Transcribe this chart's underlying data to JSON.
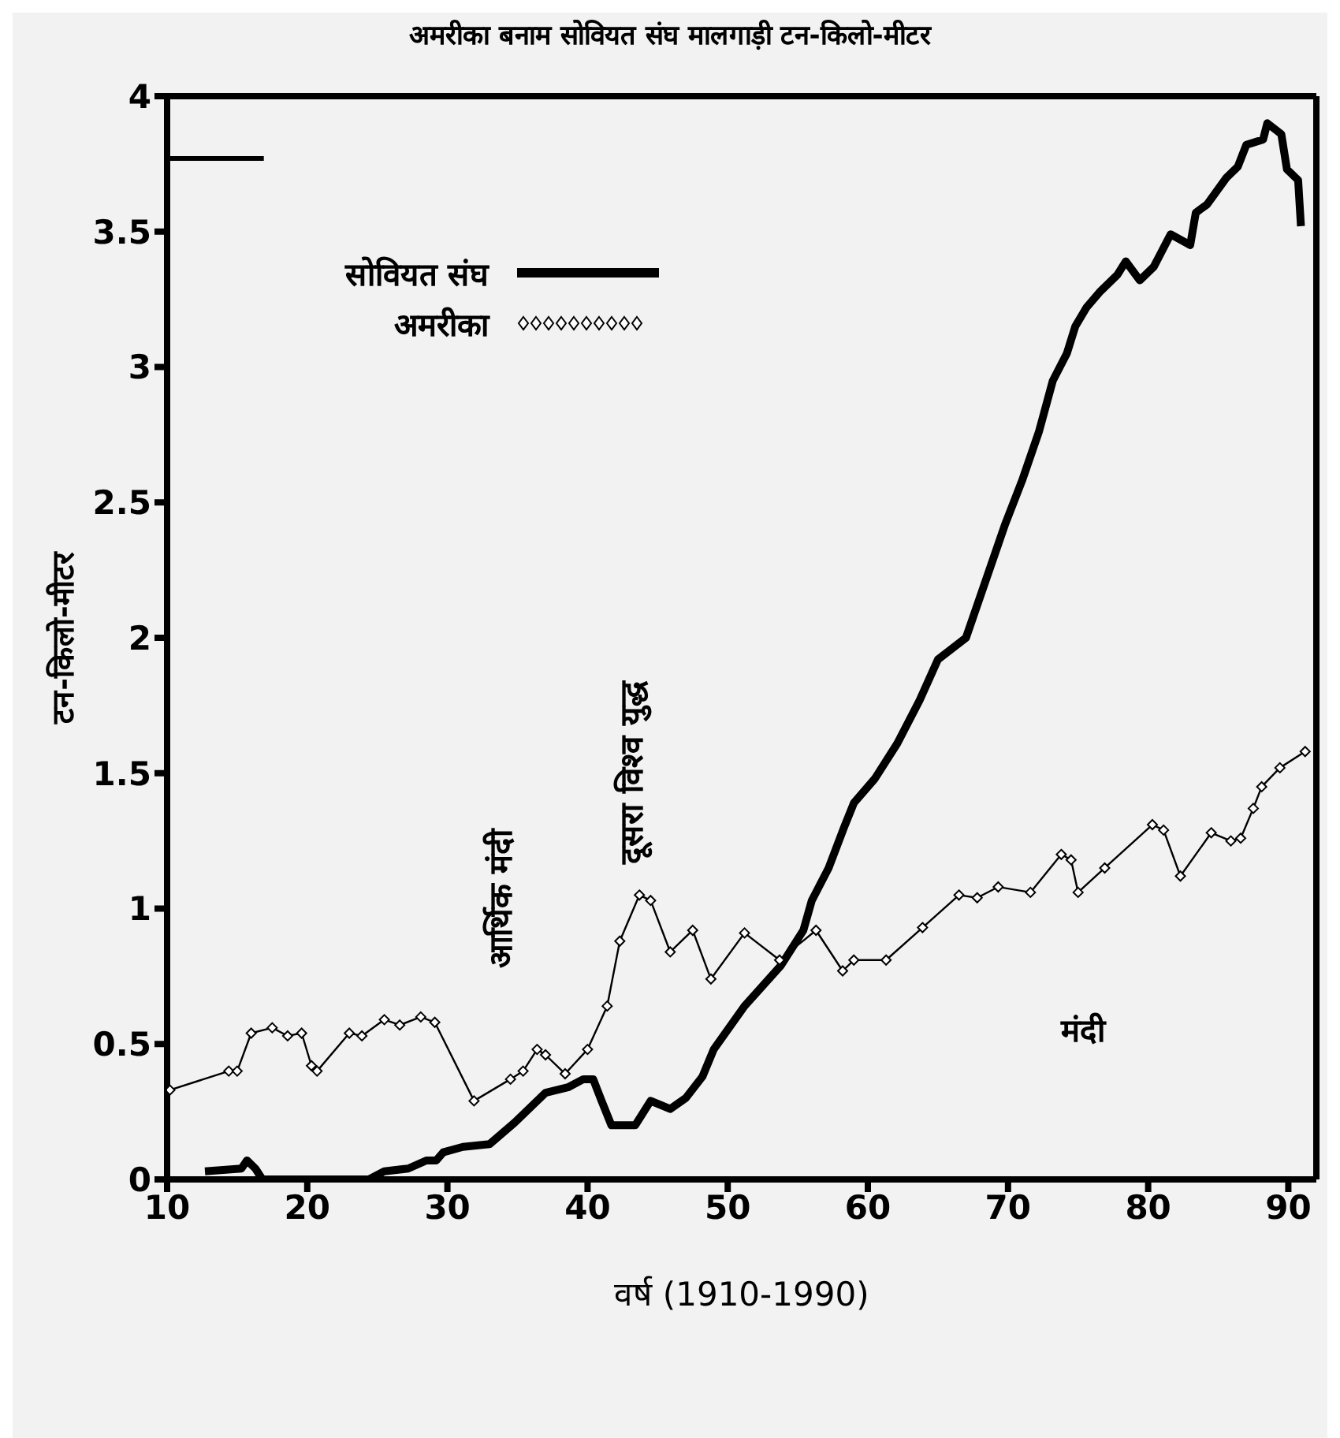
{
  "chart_data": {
    "type": "line",
    "title": "अमरीका बनाम सोवियत संघ मालगाड़ी टन-किलो-मीटर",
    "xlabel": "वर्ष (1910-1990)",
    "ylabel": "टन-किलो-मीटर",
    "xlim": [
      10,
      92
    ],
    "xticks": [
      10,
      20,
      30,
      40,
      50,
      60,
      70,
      80,
      90
    ],
    "ylim": [
      0,
      4
    ],
    "yticks": [
      0,
      0.5,
      1,
      1.5,
      2,
      2.5,
      3,
      3.5,
      4
    ],
    "legend": "top left",
    "series": [
      {
        "name": "सोवियत संघ",
        "color": "#000000",
        "marker": "none",
        "x": [
          12.7,
          15.3,
          15.7,
          16.3,
          16.8,
          24.4,
          25.5,
          27.2,
          28.5,
          29.2,
          29.7,
          31.1,
          33,
          34.8,
          37,
          38.6,
          39.7,
          40.4,
          41,
          41.7,
          43.4,
          44.5,
          45.9,
          47,
          48.2,
          49,
          51.2,
          53.8,
          55.4,
          56,
          57.2,
          58.3,
          59,
          60.5,
          62.1,
          63.7,
          65,
          67,
          68.2,
          69.8,
          71,
          72.2,
          73.2,
          74.2,
          74.8,
          75.6,
          76.6,
          77.8,
          78.4,
          79.4,
          80.4,
          81.6,
          83,
          83.4,
          84.2,
          85.6,
          86.4,
          87,
          88.2,
          88.5,
          89.5,
          89.9,
          90.7,
          90.9
        ],
        "values": [
          0.03,
          0.04,
          0.07,
          0.04,
          0,
          0,
          0.03,
          0.04,
          0.07,
          0.07,
          0.1,
          0.12,
          0.13,
          0.21,
          0.32,
          0.34,
          0.37,
          0.37,
          0.29,
          0.2,
          0.2,
          0.29,
          0.26,
          0.3,
          0.38,
          0.48,
          0.64,
          0.79,
          0.92,
          1.03,
          1.15,
          1.3,
          1.39,
          1.48,
          1.61,
          1.77,
          1.92,
          2.0,
          2.18,
          2.42,
          2.58,
          2.76,
          2.95,
          3.05,
          3.15,
          3.22,
          3.28,
          3.34,
          3.39,
          3.32,
          3.37,
          3.49,
          3.45,
          3.57,
          3.6,
          3.7,
          3.74,
          3.82,
          3.84,
          3.9,
          3.86,
          3.73,
          3.69,
          3.52
        ]
      },
      {
        "name": "अमरीका",
        "color": "#000000",
        "marker": "diamond",
        "x": [
          10.2,
          14.4,
          15,
          16,
          17.5,
          18.6,
          19.6,
          20.3,
          20.7,
          23,
          23.9,
          25.5,
          26.6,
          28.1,
          29.1,
          31.9,
          34.5,
          35.4,
          36.4,
          37,
          38.4,
          40,
          41.4,
          42.3,
          43.7,
          44.5,
          45.9,
          47.5,
          48.8,
          51.2,
          53.7,
          56.3,
          58.2,
          59,
          61.3,
          63.9,
          66.5,
          67.8,
          69.3,
          71.6,
          73.8,
          74.5,
          75,
          76.9,
          80.3,
          81.1,
          82.3,
          84.5,
          85.9,
          86.6,
          87.5,
          88.1,
          89.4,
          91.2
        ],
        "values": [
          0.33,
          0.4,
          0.4,
          0.54,
          0.56,
          0.53,
          0.54,
          0.42,
          0.4,
          0.54,
          0.53,
          0.59,
          0.57,
          0.6,
          0.58,
          0.29,
          0.37,
          0.4,
          0.48,
          0.46,
          0.39,
          0.48,
          0.64,
          0.88,
          1.05,
          1.03,
          0.84,
          0.92,
          0.74,
          0.91,
          0.81,
          0.92,
          0.77,
          0.81,
          0.81,
          0.93,
          1.05,
          1.04,
          1.08,
          1.06,
          1.2,
          1.18,
          1.06,
          1.15,
          1.31,
          1.29,
          1.12,
          1.28,
          1.25,
          1.26,
          1.37,
          1.45,
          1.52,
          1.58
        ]
      },
      {
        "color": "#000000",
        "marker": "none",
        "x": [
          10,
          16.9
        ],
        "values": [
          3.77,
          3.77
        ]
      }
    ],
    "annotations": [
      "आर्थिक मंदी",
      "दूसरा विश्व युद्ध",
      "मंदी"
    ]
  }
}
